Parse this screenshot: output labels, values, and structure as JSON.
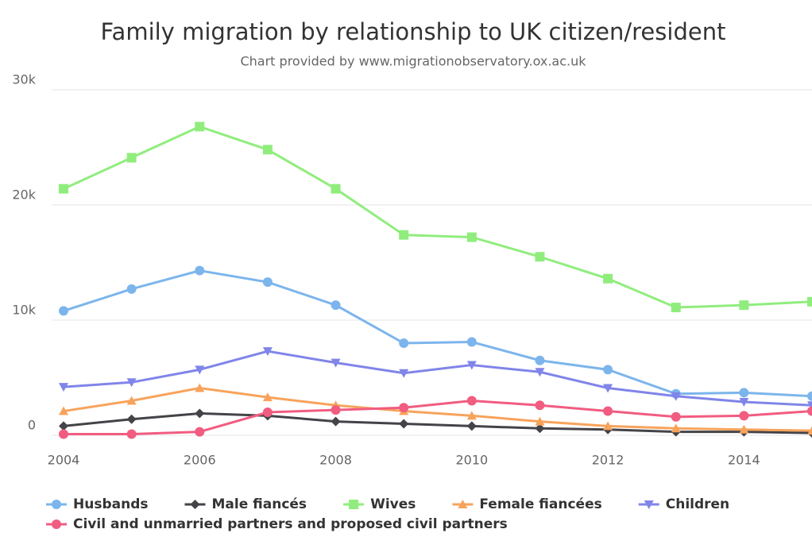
{
  "chart_data": {
    "type": "line",
    "title": "Family migration by relationship to UK citizen/resident",
    "subtitle": "Chart provided by www.migrationobservatory.ox.ac.uk",
    "x": [
      2004,
      2005,
      2006,
      2007,
      2008,
      2009,
      2010,
      2011,
      2012,
      2013,
      2014,
      2015
    ],
    "xlim": [
      2004,
      2015
    ],
    "xticks": [
      2004,
      2006,
      2008,
      2010,
      2012,
      2014
    ],
    "ylim": [
      0,
      30000
    ],
    "yticks": [
      0,
      {
        "value": 10000,
        "label": "10k"
      },
      {
        "value": 20000,
        "label": "20k"
      },
      {
        "value": 30000,
        "label": "30k"
      }
    ],
    "grid": true,
    "series": [
      {
        "name": "Husbands",
        "color": "#7cb5ec",
        "marker": "circle",
        "values": [
          10800,
          12700,
          14300,
          13300,
          11300,
          8000,
          8100,
          6500,
          5700,
          3600,
          3700,
          3400
        ]
      },
      {
        "name": "Male fiancés",
        "color": "#434348",
        "marker": "diamond",
        "values": [
          800,
          1400,
          1900,
          1700,
          1200,
          1000,
          800,
          600,
          500,
          300,
          300,
          200
        ]
      },
      {
        "name": "Wives",
        "color": "#90ed7d",
        "marker": "square",
        "values": [
          21400,
          24100,
          26800,
          24800,
          21400,
          17400,
          17200,
          15500,
          13600,
          11100,
          11300,
          11600
        ]
      },
      {
        "name": "Female fiancées",
        "color": "#f7a35c",
        "marker": "triangle",
        "values": [
          2100,
          3000,
          4100,
          3300,
          2600,
          2100,
          1700,
          1200,
          800,
          600,
          500,
          400
        ]
      },
      {
        "name": "Children",
        "color": "#8085e9",
        "marker": "triangle-down",
        "values": [
          4200,
          4600,
          5700,
          7300,
          6300,
          5400,
          6100,
          5500,
          4100,
          3400,
          2900,
          2600
        ]
      },
      {
        "name": "Civil and unmarried partners and proposed civil partners",
        "color": "#f15c80",
        "marker": "circle",
        "values": [
          100,
          100,
          300,
          2000,
          2200,
          2400,
          3000,
          2600,
          2100,
          1600,
          1700,
          2100
        ]
      }
    ]
  }
}
